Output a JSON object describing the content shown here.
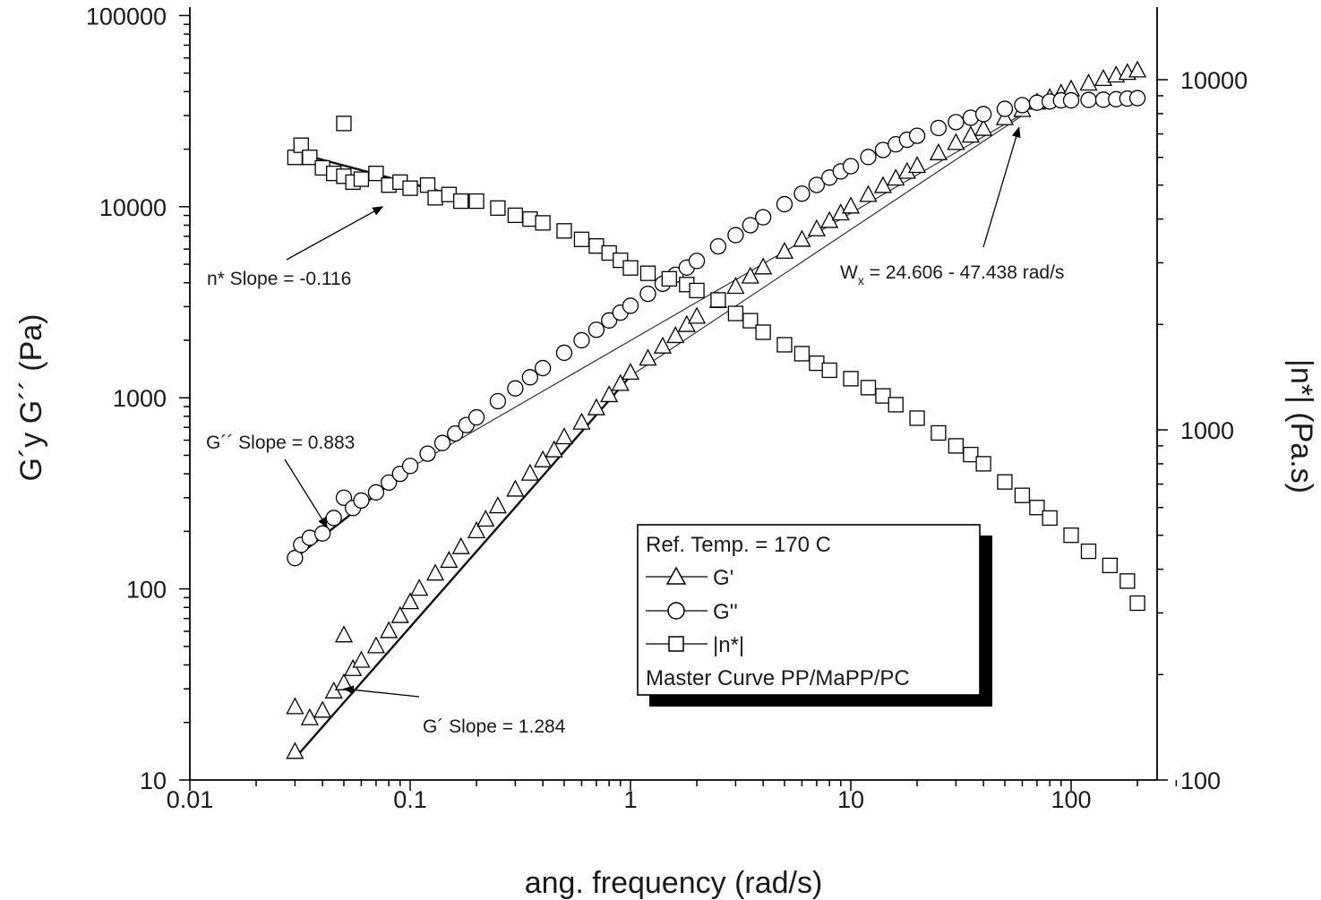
{
  "chart_data": {
    "type": "scatter",
    "xlabel": "ang. frequency (rad/s)",
    "ylabel": "G´y G´´ (Pa)",
    "y2label": "|n*| (Pa.s)",
    "x_scale": "log",
    "y_scale": "log",
    "y2_scale": "log",
    "xlim": [
      0.01,
      300
    ],
    "ylim": [
      10,
      100000
    ],
    "y2lim": [
      100,
      14000
    ],
    "x_ticks": [
      "0.01",
      "0.1",
      "1",
      "10",
      "100"
    ],
    "y_ticks": [
      "10",
      "100",
      "1000",
      "10000",
      "100000"
    ],
    "y2_ticks": [
      "100",
      "1000",
      "10000"
    ],
    "grid": false,
    "legend": {
      "position": "bottom-right",
      "header": "Ref. Temp. = 170 C",
      "footer": "Master Curve PP/MaPP/PC",
      "entries": [
        {
          "label": "G'",
          "marker": "triangle"
        },
        {
          "label": "G''",
          "marker": "circle"
        },
        {
          "label": "|n*|",
          "marker": "square"
        }
      ]
    },
    "annotations": [
      {
        "text": "n* Slope = -0.116",
        "points_to": {
          "x": 0.075,
          "y": 10000
        }
      },
      {
        "text": "G´´ Slope = 0.883",
        "points_to": {
          "x": 0.042,
          "y": 210
        }
      },
      {
        "text": "G´ Slope = 1.284",
        "points_to": {
          "x": 0.05,
          "y": 30
        }
      },
      {
        "text_prefix": "W",
        "text_sub": "x",
        "text_suffix": " = 24.606 - 47.438 rad/s",
        "points_to": {
          "x": 58,
          "y": 26000
        }
      }
    ],
    "series": [
      {
        "name": "G'",
        "marker": "triangle",
        "axis": "left",
        "points": [
          [
            0.03,
            14
          ],
          [
            0.03,
            24
          ],
          [
            0.035,
            21
          ],
          [
            0.04,
            23
          ],
          [
            0.045,
            29
          ],
          [
            0.05,
            32
          ],
          [
            0.05,
            57
          ],
          [
            0.055,
            38
          ],
          [
            0.06,
            42
          ],
          [
            0.07,
            50
          ],
          [
            0.08,
            60
          ],
          [
            0.09,
            72
          ],
          [
            0.1,
            85
          ],
          [
            0.11,
            100
          ],
          [
            0.13,
            120
          ],
          [
            0.15,
            140
          ],
          [
            0.17,
            165
          ],
          [
            0.2,
            200
          ],
          [
            0.22,
            230
          ],
          [
            0.25,
            270
          ],
          [
            0.3,
            330
          ],
          [
            0.35,
            400
          ],
          [
            0.4,
            470
          ],
          [
            0.45,
            530
          ],
          [
            0.5,
            620
          ],
          [
            0.6,
            740
          ],
          [
            0.7,
            880
          ],
          [
            0.8,
            1030
          ],
          [
            0.9,
            1180
          ],
          [
            1.0,
            1350
          ],
          [
            1.2,
            1600
          ],
          [
            1.4,
            1850
          ],
          [
            1.6,
            2100
          ],
          [
            1.8,
            2400
          ],
          [
            2.0,
            2650
          ],
          [
            2.5,
            3200
          ],
          [
            3.0,
            3800
          ],
          [
            3.5,
            4300
          ],
          [
            4.0,
            4800
          ],
          [
            5.0,
            5800
          ],
          [
            6.0,
            6700
          ],
          [
            7.0,
            7600
          ],
          [
            8.0,
            8400
          ],
          [
            9.0,
            9200
          ],
          [
            10,
            10000
          ],
          [
            12,
            11500
          ],
          [
            14,
            12800
          ],
          [
            16,
            14000
          ],
          [
            18,
            15200
          ],
          [
            20,
            16300
          ],
          [
            25,
            19000
          ],
          [
            30,
            21500
          ],
          [
            35,
            23500
          ],
          [
            40,
            25500
          ],
          [
            50,
            29000
          ],
          [
            60,
            32000
          ],
          [
            70,
            35000
          ],
          [
            80,
            37000
          ],
          [
            90,
            39000
          ],
          [
            100,
            41000
          ],
          [
            120,
            44000
          ],
          [
            140,
            46500
          ],
          [
            160,
            48500
          ],
          [
            180,
            50000
          ],
          [
            200,
            51500
          ]
        ]
      },
      {
        "name": "G''",
        "marker": "circle",
        "axis": "left",
        "points": [
          [
            0.03,
            145
          ],
          [
            0.032,
            170
          ],
          [
            0.035,
            185
          ],
          [
            0.04,
            195
          ],
          [
            0.045,
            235
          ],
          [
            0.05,
            300
          ],
          [
            0.055,
            265
          ],
          [
            0.06,
            290
          ],
          [
            0.07,
            320
          ],
          [
            0.08,
            360
          ],
          [
            0.09,
            400
          ],
          [
            0.1,
            440
          ],
          [
            0.12,
            510
          ],
          [
            0.14,
            580
          ],
          [
            0.16,
            650
          ],
          [
            0.18,
            720
          ],
          [
            0.2,
            790
          ],
          [
            0.25,
            960
          ],
          [
            0.3,
            1120
          ],
          [
            0.35,
            1280
          ],
          [
            0.4,
            1430
          ],
          [
            0.5,
            1720
          ],
          [
            0.6,
            2000
          ],
          [
            0.7,
            2270
          ],
          [
            0.8,
            2540
          ],
          [
            0.9,
            2790
          ],
          [
            1.0,
            3030
          ],
          [
            1.2,
            3500
          ],
          [
            1.4,
            3950
          ],
          [
            1.6,
            4400
          ],
          [
            1.8,
            4800
          ],
          [
            2.0,
            5200
          ],
          [
            2.5,
            6200
          ],
          [
            3.0,
            7100
          ],
          [
            3.5,
            8000
          ],
          [
            4.0,
            8800
          ],
          [
            5.0,
            10300
          ],
          [
            6.0,
            11700
          ],
          [
            7.0,
            13000
          ],
          [
            8.0,
            14200
          ],
          [
            9.0,
            15300
          ],
          [
            10,
            16300
          ],
          [
            12,
            18200
          ],
          [
            14,
            19800
          ],
          [
            16,
            21200
          ],
          [
            18,
            22400
          ],
          [
            20,
            23500
          ],
          [
            25,
            25800
          ],
          [
            30,
            27700
          ],
          [
            35,
            29200
          ],
          [
            40,
            30500
          ],
          [
            50,
            32500
          ],
          [
            60,
            34000
          ],
          [
            70,
            35000
          ],
          [
            80,
            35500
          ],
          [
            90,
            36000
          ],
          [
            100,
            36000
          ],
          [
            120,
            36200
          ],
          [
            140,
            36300
          ],
          [
            160,
            36500
          ],
          [
            180,
            36800
          ],
          [
            200,
            37000
          ]
        ]
      },
      {
        "name": "|n*|",
        "marker": "square",
        "axis": "right",
        "points": [
          [
            0.03,
            6000
          ],
          [
            0.032,
            6500
          ],
          [
            0.035,
            6000
          ],
          [
            0.04,
            5600
          ],
          [
            0.045,
            5400
          ],
          [
            0.05,
            7500
          ],
          [
            0.05,
            5300
          ],
          [
            0.055,
            5100
          ],
          [
            0.06,
            5200
          ],
          [
            0.07,
            5400
          ],
          [
            0.08,
            5000
          ],
          [
            0.09,
            5100
          ],
          [
            0.1,
            4900
          ],
          [
            0.12,
            5000
          ],
          [
            0.13,
            4600
          ],
          [
            0.15,
            4700
          ],
          [
            0.17,
            4500
          ],
          [
            0.2,
            4500
          ],
          [
            0.25,
            4300
          ],
          [
            0.3,
            4100
          ],
          [
            0.35,
            4000
          ],
          [
            0.4,
            3900
          ],
          [
            0.5,
            3700
          ],
          [
            0.6,
            3500
          ],
          [
            0.7,
            3350
          ],
          [
            0.8,
            3200
          ],
          [
            0.9,
            3050
          ],
          [
            1.0,
            2900
          ],
          [
            1.2,
            2800
          ],
          [
            1.5,
            2700
          ],
          [
            1.8,
            2600
          ],
          [
            2.0,
            2500
          ],
          [
            2.5,
            2350
          ],
          [
            3.0,
            2150
          ],
          [
            3.5,
            2050
          ],
          [
            4.0,
            1900
          ],
          [
            5.0,
            1750
          ],
          [
            6.0,
            1650
          ],
          [
            7.0,
            1550
          ],
          [
            8.0,
            1480
          ],
          [
            10,
            1400
          ],
          [
            12,
            1320
          ],
          [
            14,
            1250
          ],
          [
            16,
            1180
          ],
          [
            20,
            1080
          ],
          [
            25,
            980
          ],
          [
            30,
            900
          ],
          [
            35,
            850
          ],
          [
            40,
            800
          ],
          [
            50,
            710
          ],
          [
            60,
            650
          ],
          [
            70,
            600
          ],
          [
            80,
            560
          ],
          [
            100,
            500
          ],
          [
            120,
            450
          ],
          [
            150,
            410
          ],
          [
            180,
            370
          ],
          [
            200,
            320
          ]
        ]
      }
    ],
    "fit_lines": [
      {
        "name": "n* fit",
        "from": [
          0.03,
          6200
        ],
        "to": [
          0.2,
          4500
        ],
        "axis": "right"
      },
      {
        "name": "G'' fit",
        "from": [
          0.03,
          145
        ],
        "to": [
          0.1,
          430
        ],
        "axis": "left"
      },
      {
        "name": "G' fit",
        "from": [
          0.03,
          13
        ],
        "to": [
          1.0,
          1300
        ],
        "axis": "left"
      }
    ],
    "guide_lines": [
      {
        "name": "G' tail",
        "from": [
          1.0,
          1300
        ],
        "to": [
          60,
          30000
        ],
        "axis": "left"
      },
      {
        "name": "G'' tail",
        "from": [
          0.1,
          430
        ],
        "to": [
          60,
          30500
        ],
        "axis": "left"
      }
    ]
  }
}
